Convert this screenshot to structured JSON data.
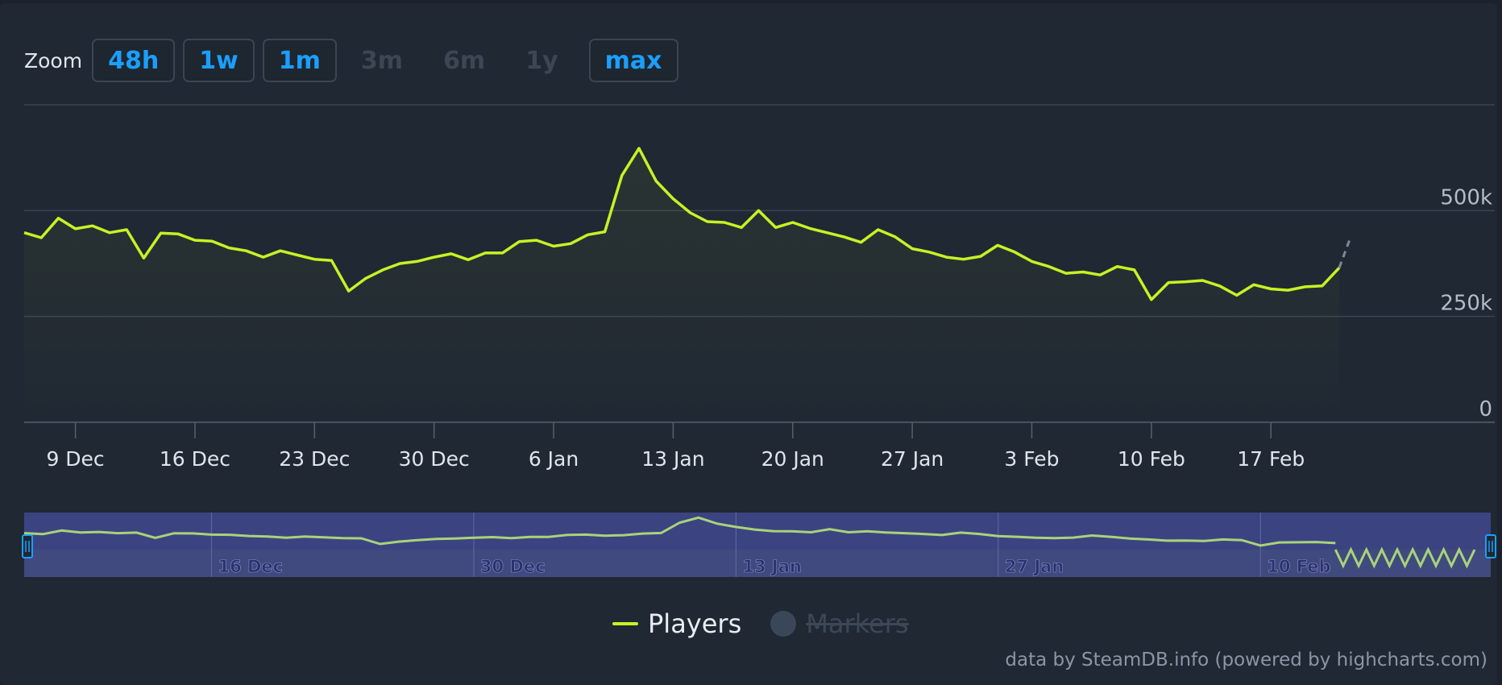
{
  "zoom": {
    "label": "Zoom",
    "buttons": [
      {
        "label": "48h",
        "enabled": true
      },
      {
        "label": "1w",
        "enabled": true
      },
      {
        "label": "1m",
        "enabled": true
      },
      {
        "label": "3m",
        "enabled": false
      },
      {
        "label": "6m",
        "enabled": false
      },
      {
        "label": "1y",
        "enabled": false
      },
      {
        "label": "max",
        "enabled": true
      }
    ]
  },
  "colors": {
    "series": "#c6f225",
    "navigator_fill": "#3c4381",
    "background": "#202833",
    "grid": "#3a4350",
    "button_text": "#1a9fff"
  },
  "chart_data": {
    "type": "line",
    "x_label_dates": [
      "9 Dec",
      "16 Dec",
      "23 Dec",
      "30 Dec",
      "6 Jan",
      "13 Jan",
      "20 Jan",
      "27 Jan",
      "3 Feb",
      "10 Feb",
      "17 Feb"
    ],
    "navigator_labels": [
      "16 Dec",
      "30 Dec",
      "13 Jan",
      "27 Jan",
      "10 Feb"
    ],
    "y_ticks": [
      {
        "value": 0,
        "label": "0"
      },
      {
        "value": 250000,
        "label": "250k"
      },
      {
        "value": 500000,
        "label": "500k"
      }
    ],
    "ylim": [
      0,
      750000
    ],
    "grid": true,
    "series": [
      {
        "name": "Players",
        "x_days": [
          0,
          1,
          2,
          3,
          4,
          5,
          6,
          7,
          8,
          9,
          10,
          11,
          12,
          13,
          14,
          15,
          16,
          17,
          18,
          19,
          20,
          21,
          22,
          23,
          24,
          25,
          26,
          27,
          28,
          29,
          30,
          31,
          32,
          33,
          34,
          35,
          36,
          37,
          38,
          39,
          40,
          41,
          42,
          43,
          44,
          45,
          46,
          47,
          48,
          49,
          50,
          51,
          52,
          53,
          54,
          55,
          56,
          57,
          58,
          59,
          60,
          61,
          62,
          63,
          64,
          65,
          66,
          67,
          68,
          69,
          70,
          71,
          72,
          73,
          74,
          75,
          76,
          77
        ],
        "values": [
          448000,
          436000,
          482000,
          457000,
          464000,
          448000,
          455000,
          388000,
          447000,
          445000,
          430000,
          428000,
          412000,
          405000,
          390000,
          405000,
          395000,
          385000,
          382000,
          310000,
          340000,
          360000,
          375000,
          380000,
          390000,
          398000,
          384000,
          400000,
          400000,
          427000,
          430000,
          416000,
          422000,
          443000,
          450000,
          583000,
          647000,
          570000,
          528000,
          495000,
          474000,
          472000,
          460000,
          500000,
          460000,
          472000,
          458000,
          448000,
          438000,
          425000,
          455000,
          438000,
          410000,
          402000,
          390000,
          385000,
          392000,
          418000,
          402000,
          380000,
          368000,
          352000,
          355000,
          348000,
          368000,
          360000,
          290000,
          330000,
          332000,
          335000,
          322000,
          300000,
          325000,
          315000,
          312000,
          320000,
          322000,
          365000
        ],
        "forecast_values": [
          365000,
          430000
        ]
      }
    ]
  },
  "legend": {
    "players": "Players",
    "markers": "Markers"
  },
  "credit": "data by SteamDB.info (powered by highcharts.com)"
}
